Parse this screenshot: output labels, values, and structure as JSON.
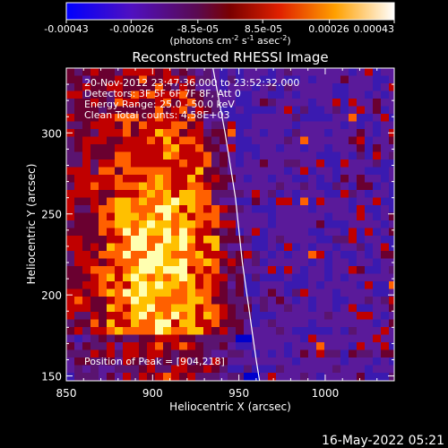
{
  "chart_data": {
    "type": "heatmap",
    "title": "Reconstructed RHESSI Image",
    "xlabel": "Heliocentric X (arcsec)",
    "ylabel": "Heliocentric Y (arcsec)",
    "xlim": [
      850,
      1040
    ],
    "ylim": [
      147,
      340
    ],
    "x_ticks": [
      850,
      900,
      950,
      1000
    ],
    "y_ticks": [
      150,
      200,
      250,
      300
    ],
    "x_tick_labels": [
      "850",
      "900",
      "950",
      "1000"
    ],
    "y_tick_labels": [
      "150",
      "200",
      "250",
      "300"
    ],
    "colorbar": {
      "min": -0.00043,
      "max": 0.00043,
      "tick_values": [
        -0.00043,
        -0.00026,
        -8.5e-05,
        8.5e-05,
        0.00026,
        0.00043
      ],
      "tick_labels": [
        "-0.00043",
        "-0.00026",
        "-8.5e-05",
        "8.5e-05",
        "0.00026",
        "0.00043"
      ],
      "units_parts": [
        "(photons cm",
        "-2",
        " s",
        "-1",
        " asec",
        "-2",
        ")"
      ]
    },
    "annotations": [
      "20-Nov-2012 23:47:36.000 to 23:52:32.000",
      "Detectors: 3F 5F 6F 7F 8F, Att 0",
      "Energy Range: 25.0 - 50.0 keV",
      "Clean     Total counts: 4.58E+03"
    ],
    "peak_label": "Position of Peak = [904,218]",
    "peak_position": [
      904,
      218
    ],
    "limb_curve": [
      [
        935,
        340
      ],
      [
        942,
        300
      ],
      [
        948,
        260
      ],
      [
        952,
        220
      ],
      [
        956,
        190
      ],
      [
        960,
        160
      ],
      [
        962,
        147
      ]
    ],
    "colors": {
      "background": "#000000",
      "foreground": "#ffffff",
      "colormap": [
        "#0000cc",
        "#3a1ab0",
        "#5a1a9a",
        "#5a1470",
        "#6a0030",
        "#c00000",
        "#ff6000",
        "#ffc000",
        "#ffffb0"
      ]
    }
  },
  "timestamp": "16-May-2022 05:21"
}
